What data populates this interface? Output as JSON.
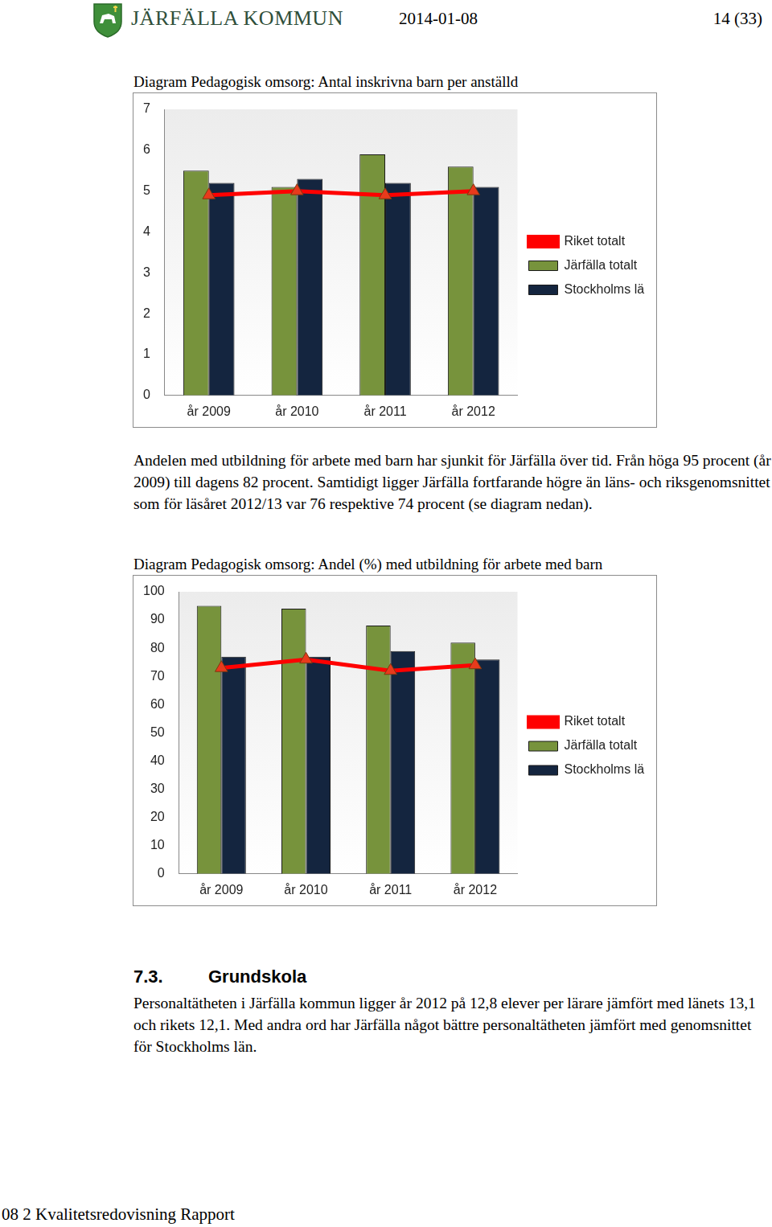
{
  "header": {
    "organization": "JÄRFÄLLA KOMMUN",
    "date": "2014-01-08",
    "page": "14 (33)"
  },
  "chart_data": [
    {
      "type": "bar",
      "title": "Diagram Pedagogisk omsorg: Antal inskrivna barn per anställd",
      "categories": [
        "år 2009",
        "år 2010",
        "år 2011",
        "år 2012"
      ],
      "series": [
        {
          "name": "Järfälla totalt",
          "color": "#77933c",
          "values": [
            5.5,
            5.1,
            5.9,
            5.6
          ]
        },
        {
          "name": "Stockholms län",
          "color": "#14253f",
          "values": [
            5.2,
            5.3,
            5.2,
            5.1
          ]
        },
        {
          "name": "Riket totalt",
          "type": "line",
          "color": "#ff0000",
          "marker": "triangle",
          "line_style": "solid",
          "values": [
            4.9,
            5.0,
            4.9,
            5.0
          ]
        }
      ],
      "ylim": [
        0,
        7
      ],
      "yticks": [
        0,
        1,
        2,
        3,
        4,
        5,
        6,
        7
      ],
      "grid": false,
      "legend": "right"
    },
    {
      "type": "bar",
      "title": "Diagram Pedagogisk omsorg: Andel (%) med utbildning för arbete med barn",
      "categories": [
        "år 2009",
        "år 2010",
        "år 2011",
        "år 2012"
      ],
      "series": [
        {
          "name": "Järfälla totalt",
          "color": "#77933c",
          "values": [
            95,
            94,
            88,
            82
          ]
        },
        {
          "name": "Stockholms län",
          "color": "#14253f",
          "values": [
            77,
            77,
            79,
            76
          ]
        },
        {
          "name": "Riket totalt",
          "type": "line",
          "color": "#ff0000",
          "marker": "triangle",
          "line_style": "solid",
          "values": [
            73,
            76,
            72,
            74
          ]
        }
      ],
      "ylim": [
        0,
        100
      ],
      "yticks": [
        0,
        10,
        20,
        30,
        40,
        50,
        60,
        70,
        80,
        90,
        100
      ],
      "grid": false,
      "legend": "right"
    }
  ],
  "text": {
    "paragraph_1": "Andelen med utbildning för arbete med barn har sjunkit för Järfälla över tid. Från höga 95 procent (år 2009) till dagens 82 procent. Samtidigt ligger Järfälla fortfarande högre än läns- och riksgenomsnittet som för läsåret 2012/13 var 76 respektive 74 procent (se diagram nedan).",
    "heading_number": "7.3.",
    "heading": "Grundskola",
    "paragraph_2": "Personaltätheten i Järfälla kommun ligger år 2012 på 12,8 elever per lärare jämfört med länets 13,1 och rikets 12,1. Med andra ord har Järfälla något bättre personaltätheten jämfört med genomsnittet för Stockholms län."
  },
  "footer": "08 2 Kvalitetsredovisning Rapport"
}
